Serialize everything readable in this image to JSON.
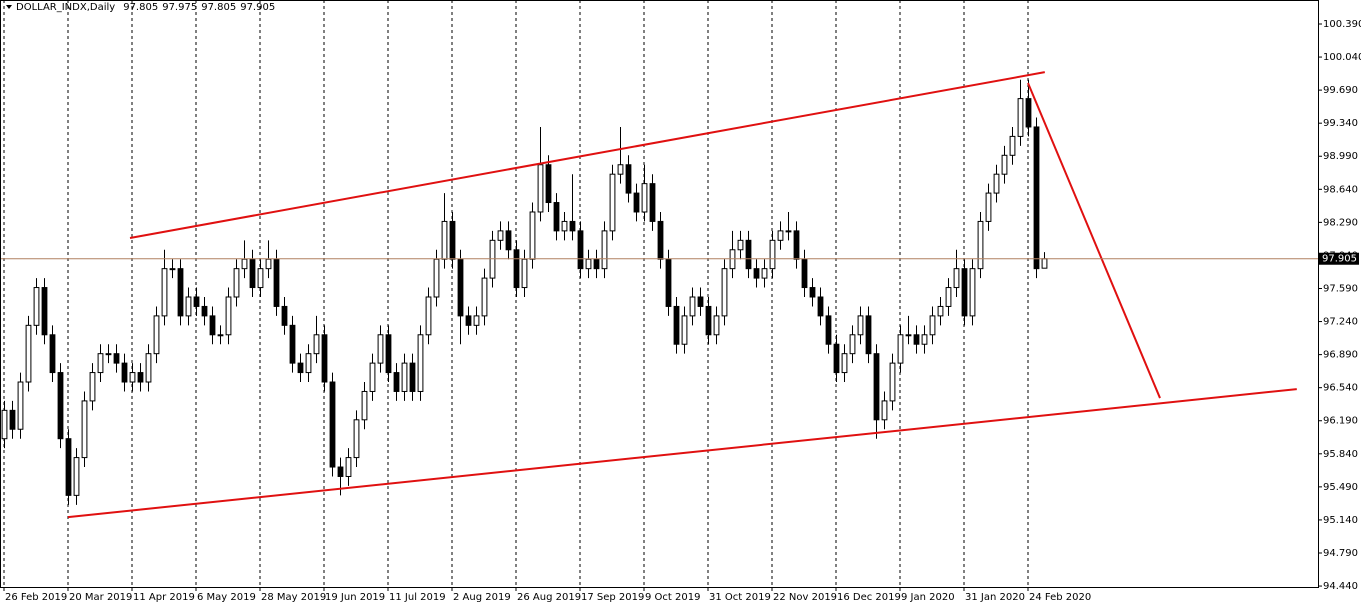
{
  "chart_data": {
    "type": "candlestick",
    "title": "DOLLAR_INDX,Daily",
    "up_color": "#ffffff",
    "down_color": "#000000",
    "line_color": "#000000",
    "trendline_color": "#e01010",
    "price_line_color": "#b08060",
    "grid": true,
    "xlim": [
      -0.5,
      164.25
    ],
    "ylim": [
      94.43,
      100.644
    ],
    "open": [
      96.0,
      96.3,
      96.1,
      96.6,
      97.2,
      97.6,
      97.1,
      96.7,
      96.0,
      95.4,
      95.8,
      96.4,
      96.7,
      96.9,
      96.9,
      96.8,
      96.6,
      96.7,
      96.6,
      96.9,
      97.3,
      97.8,
      97.8,
      97.3,
      97.5,
      97.4,
      97.3,
      97.1,
      97.1,
      97.5,
      97.8,
      97.9,
      97.6,
      97.8,
      97.9,
      97.4,
      97.2,
      96.8,
      96.7,
      96.9,
      97.1,
      96.6,
      95.7,
      95.6,
      95.8,
      96.2,
      96.5,
      96.8,
      97.1,
      96.7,
      96.5,
      96.8,
      96.5,
      97.1,
      97.5,
      97.9,
      98.3,
      97.9,
      97.3,
      97.2,
      97.3,
      97.7,
      98.1,
      98.2,
      98.0,
      97.6,
      97.9,
      98.4,
      98.9,
      98.5,
      98.2,
      98.3,
      98.2,
      97.8,
      97.9,
      97.8,
      98.2,
      98.8,
      98.9,
      98.6,
      98.4,
      98.7,
      98.3,
      97.9,
      97.4,
      97.0,
      97.3,
      97.5,
      97.4,
      97.1,
      97.3,
      97.8,
      98.0,
      98.1,
      97.8,
      97.7,
      97.8,
      98.1,
      98.2,
      98.2,
      97.9,
      97.6,
      97.5,
      97.3,
      97.0,
      96.7,
      96.9,
      97.1,
      97.3,
      96.9,
      96.2,
      96.4,
      96.8,
      97.1,
      97.1,
      97.0,
      97.1,
      97.3,
      97.4,
      97.6,
      97.8,
      97.3,
      97.8,
      98.3,
      98.6,
      98.8,
      99.0,
      99.2,
      99.6,
      99.3,
      97.805
    ],
    "high": [
      96.4,
      96.4,
      96.7,
      97.3,
      97.7,
      97.7,
      97.2,
      96.8,
      96.1,
      95.9,
      96.5,
      96.8,
      97.0,
      97.0,
      97.0,
      96.9,
      96.8,
      96.8,
      97.0,
      97.4,
      98.0,
      97.9,
      97.9,
      97.6,
      97.6,
      97.5,
      97.4,
      97.2,
      97.6,
      97.9,
      98.1,
      98.0,
      97.9,
      98.1,
      98.0,
      97.5,
      97.3,
      96.9,
      97.0,
      97.3,
      97.2,
      96.7,
      95.8,
      95.9,
      96.3,
      96.6,
      96.9,
      97.2,
      97.2,
      96.8,
      96.9,
      96.9,
      97.2,
      97.6,
      98.0,
      98.6,
      98.4,
      98.0,
      97.4,
      97.4,
      97.8,
      98.2,
      98.3,
      98.3,
      98.1,
      98.0,
      98.5,
      99.3,
      99.0,
      98.6,
      98.4,
      98.8,
      98.3,
      98.0,
      98.0,
      98.3,
      98.9,
      99.3,
      99.0,
      98.7,
      98.9,
      98.8,
      98.4,
      98.0,
      97.5,
      97.4,
      97.6,
      97.6,
      97.5,
      97.4,
      97.9,
      98.2,
      98.2,
      98.2,
      97.9,
      97.9,
      98.2,
      98.3,
      98.4,
      98.3,
      98.0,
      97.7,
      97.6,
      97.4,
      97.1,
      97.0,
      97.2,
      97.4,
      97.4,
      97.0,
      96.5,
      96.9,
      97.2,
      97.3,
      97.2,
      97.2,
      97.4,
      97.5,
      97.7,
      98.0,
      97.9,
      97.9,
      98.4,
      98.7,
      98.9,
      99.1,
      99.3,
      99.8,
      99.8,
      99.4,
      97.975
    ],
    "low": [
      95.9,
      96.0,
      96.0,
      96.5,
      97.1,
      97.0,
      96.6,
      95.9,
      95.3,
      95.3,
      95.7,
      96.3,
      96.6,
      96.8,
      96.7,
      96.5,
      96.5,
      96.5,
      96.5,
      96.8,
      97.2,
      97.7,
      97.2,
      97.2,
      97.3,
      97.2,
      97.0,
      97.0,
      97.0,
      97.4,
      97.7,
      97.5,
      97.5,
      97.7,
      97.3,
      97.1,
      96.7,
      96.6,
      96.6,
      96.8,
      96.5,
      95.6,
      95.4,
      95.5,
      95.7,
      96.1,
      96.4,
      96.7,
      96.6,
      96.4,
      96.4,
      96.4,
      96.4,
      97.0,
      97.4,
      97.8,
      97.8,
      97.0,
      97.1,
      97.1,
      97.2,
      97.6,
      98.0,
      97.9,
      97.5,
      97.5,
      97.8,
      98.3,
      98.4,
      98.1,
      98.1,
      98.1,
      97.7,
      97.7,
      97.7,
      97.7,
      98.1,
      98.7,
      98.5,
      98.3,
      98.3,
      98.2,
      97.8,
      97.3,
      96.9,
      96.9,
      97.2,
      97.3,
      97.0,
      97.0,
      97.2,
      97.7,
      97.9,
      97.7,
      97.6,
      97.6,
      97.7,
      98.0,
      98.1,
      97.8,
      97.5,
      97.4,
      97.2,
      96.9,
      96.6,
      96.6,
      96.8,
      97.0,
      96.8,
      96.0,
      96.1,
      96.3,
      96.7,
      97.0,
      96.9,
      96.9,
      97.0,
      97.2,
      97.3,
      97.5,
      97.2,
      97.2,
      97.7,
      98.2,
      98.5,
      98.7,
      98.9,
      99.1,
      99.2,
      97.7,
      97.805
    ],
    "close": [
      96.3,
      96.1,
      96.6,
      97.2,
      97.6,
      97.1,
      96.7,
      96.0,
      95.4,
      95.8,
      96.4,
      96.7,
      96.9,
      96.9,
      96.8,
      96.6,
      96.7,
      96.6,
      96.9,
      97.3,
      97.8,
      97.8,
      97.3,
      97.5,
      97.4,
      97.3,
      97.1,
      97.1,
      97.5,
      97.8,
      97.9,
      97.6,
      97.8,
      97.9,
      97.4,
      97.2,
      96.8,
      96.7,
      96.9,
      97.1,
      96.6,
      95.7,
      95.6,
      95.8,
      96.2,
      96.5,
      96.8,
      97.1,
      96.7,
      96.5,
      96.8,
      96.5,
      97.1,
      97.5,
      97.9,
      98.3,
      97.9,
      97.3,
      97.2,
      97.3,
      97.7,
      98.1,
      98.2,
      98.0,
      97.6,
      97.9,
      98.4,
      98.9,
      98.5,
      98.2,
      98.3,
      98.2,
      97.8,
      97.9,
      97.8,
      98.2,
      98.8,
      98.9,
      98.6,
      98.4,
      98.7,
      98.3,
      97.9,
      97.4,
      97.0,
      97.3,
      97.5,
      97.4,
      97.1,
      97.3,
      97.8,
      98.0,
      98.1,
      97.8,
      97.7,
      97.8,
      98.1,
      98.2,
      98.2,
      97.9,
      97.6,
      97.5,
      97.3,
      97.0,
      96.7,
      96.9,
      97.1,
      97.3,
      96.9,
      96.2,
      96.4,
      96.8,
      97.1,
      97.1,
      97.0,
      97.1,
      97.3,
      97.4,
      97.6,
      97.8,
      97.3,
      97.8,
      98.3,
      98.6,
      98.8,
      99.0,
      99.2,
      99.6,
      99.3,
      97.8,
      97.905
    ],
    "xticks": [
      {
        "value": 0,
        "label": "26 Feb 2019"
      },
      {
        "value": 8,
        "label": "20 Mar 2019"
      },
      {
        "value": 16,
        "label": "11 Apr 2019"
      },
      {
        "value": 24,
        "label": "6 May 2019"
      },
      {
        "value": 32,
        "label": "28 May 2019"
      },
      {
        "value": 40,
        "label": "19 Jun 2019"
      },
      {
        "value": 48,
        "label": "11 Jul 2019"
      },
      {
        "value": 56,
        "label": "2 Aug 2019"
      },
      {
        "value": 64,
        "label": "26 Aug 2019"
      },
      {
        "value": 72,
        "label": "17 Sep 2019"
      },
      {
        "value": 80,
        "label": "9 Oct 2019"
      },
      {
        "value": 88,
        "label": "31 Oct 2019"
      },
      {
        "value": 96,
        "label": "22 Nov 2019"
      },
      {
        "value": 104,
        "label": "16 Dec 2019"
      },
      {
        "value": 112,
        "label": "9 Jan 2020"
      },
      {
        "value": 120,
        "label": "31 Jan 2020"
      },
      {
        "value": 128,
        "label": "24 Feb 2020"
      }
    ],
    "yticks": [
      {
        "value": 100.39,
        "label": "100.390"
      },
      {
        "value": 100.04,
        "label": "100.040"
      },
      {
        "value": 99.69,
        "label": "99.690"
      },
      {
        "value": 99.34,
        "label": "99.340"
      },
      {
        "value": 98.99,
        "label": "98.990"
      },
      {
        "value": 98.64,
        "label": "98.640"
      },
      {
        "value": 98.29,
        "label": "98.290"
      },
      {
        "value": 97.94,
        "label": "97.940"
      },
      {
        "value": 97.59,
        "label": "97.590"
      },
      {
        "value": 97.24,
        "label": "97.240"
      },
      {
        "value": 96.89,
        "label": "96.890"
      },
      {
        "value": 96.54,
        "label": "96.540"
      },
      {
        "value": 96.19,
        "label": "96.190"
      },
      {
        "value": 95.84,
        "label": "95.840"
      },
      {
        "value": 95.49,
        "label": "95.490"
      },
      {
        "value": 95.14,
        "label": "95.140"
      },
      {
        "value": 94.79,
        "label": "94.790"
      },
      {
        "value": 94.44,
        "label": "94.440"
      }
    ],
    "trendlines": [
      {
        "x": [
          15.75,
          130.1
        ],
        "y": [
          98.125,
          99.88
        ]
      },
      {
        "x": [
          8.0,
          161.6
        ],
        "y": [
          95.17,
          96.525
        ]
      },
      {
        "x": [
          128.0,
          144.5
        ],
        "y": [
          99.765,
          96.43
        ]
      }
    ]
  }
}
